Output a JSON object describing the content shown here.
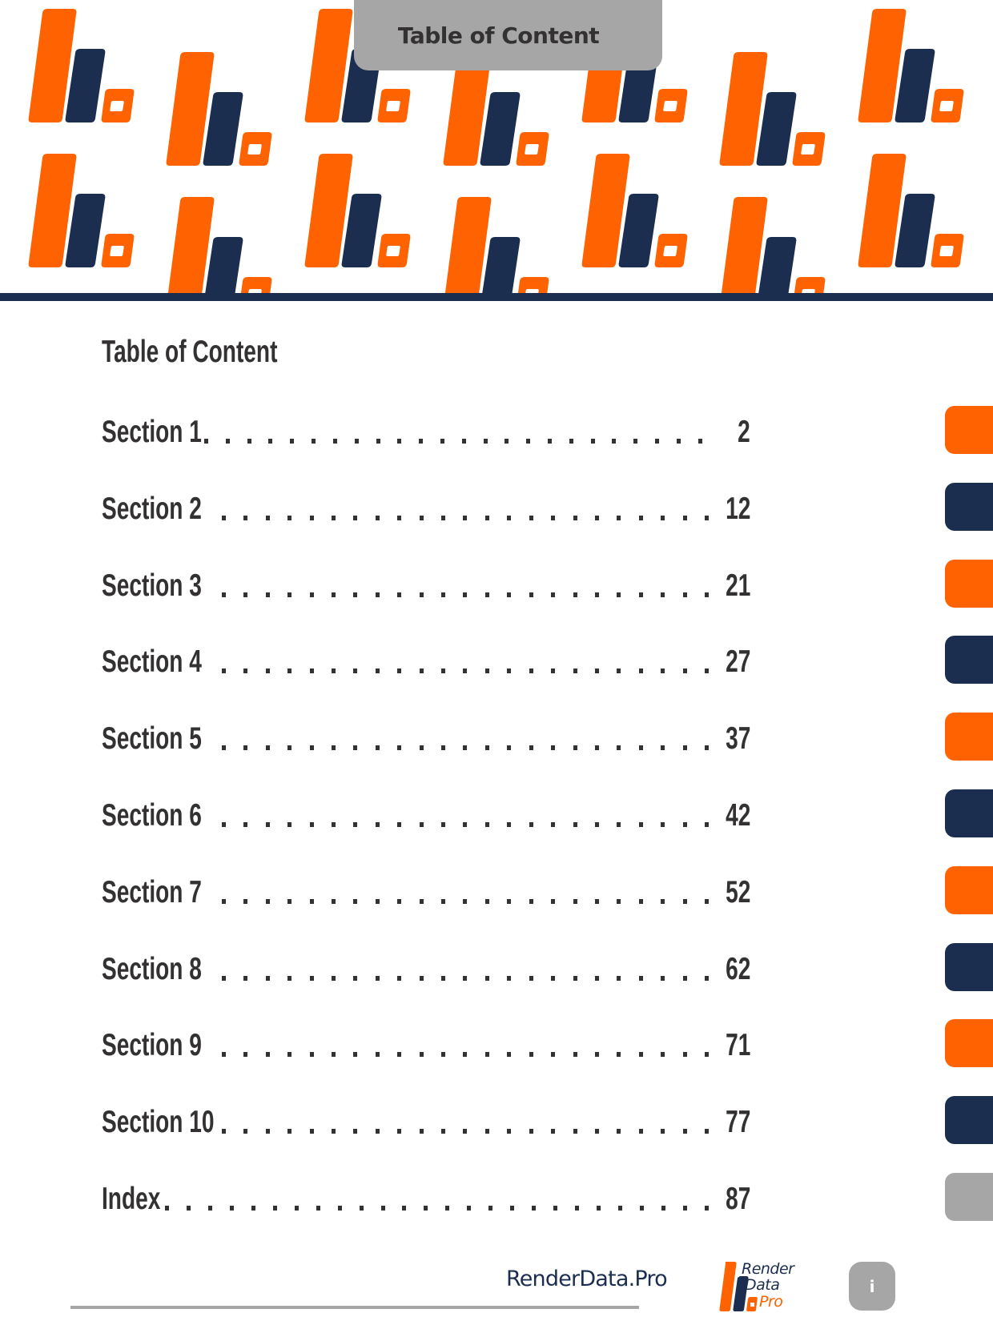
{
  "colors": {
    "orange": "#ff6200",
    "navy": "#1b2e50",
    "gray": "#a6a6a6",
    "text": "#333132"
  },
  "header": {
    "tab_title": "Table of Content"
  },
  "toc": {
    "title": "Table of Content",
    "entries": [
      {
        "label": "Section 1",
        "page": "2"
      },
      {
        "label": "Section 2",
        "page": "12"
      },
      {
        "label": "Section 3",
        "page": "21"
      },
      {
        "label": "Section 4",
        "page": "27"
      },
      {
        "label": "Section 5",
        "page": "37"
      },
      {
        "label": "Section 6",
        "page": "42"
      },
      {
        "label": "Section 7",
        "page": "52"
      },
      {
        "label": "Section 8",
        "page": "62"
      },
      {
        "label": "Section 9",
        "page": "71"
      },
      {
        "label": "Section 10",
        "page": "77"
      },
      {
        "label": "Index",
        "page": "87"
      }
    ]
  },
  "side_tabs": [
    {
      "color": "orange"
    },
    {
      "color": "navy"
    },
    {
      "color": "orange"
    },
    {
      "color": "navy"
    },
    {
      "color": "orange"
    },
    {
      "color": "navy"
    },
    {
      "color": "orange"
    },
    {
      "color": "navy"
    },
    {
      "color": "orange"
    },
    {
      "color": "navy"
    },
    {
      "color": "gray"
    }
  ],
  "footer": {
    "site_name": "RenderData.Pro",
    "logo": {
      "line1": "Render",
      "line2": "Data",
      "line3": "Pro"
    },
    "page_number": "i"
  },
  "icons": {
    "header_pattern": "bar-chart-motif-icon",
    "logo": "renderdata-logo-icon"
  }
}
